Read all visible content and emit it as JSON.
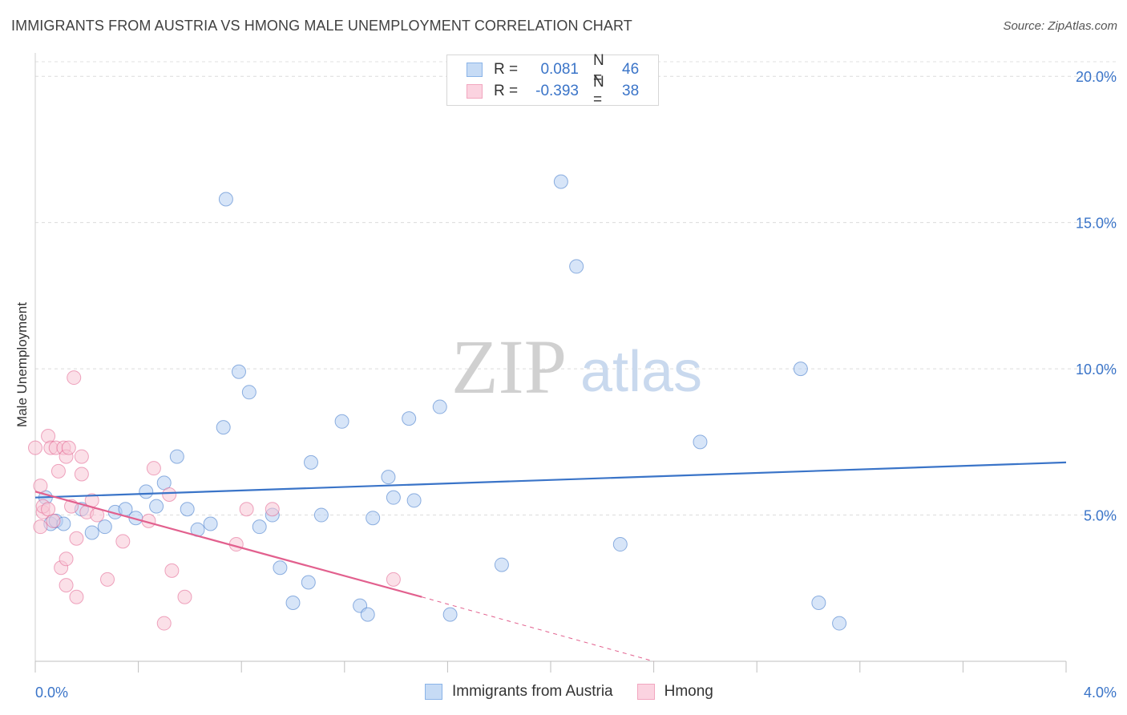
{
  "header": {
    "title": "IMMIGRANTS FROM AUSTRIA VS HMONG MALE UNEMPLOYMENT CORRELATION CHART",
    "source": "Source: ZipAtlas.com"
  },
  "watermark": {
    "zip": "ZIP",
    "atlas": "atlas"
  },
  "legend": {
    "rows": [
      {
        "r_label": "R =",
        "r_value": "0.081",
        "n_label": "N =",
        "n_value": "46",
        "color": "#8ab4e8"
      },
      {
        "r_label": "R =",
        "r_value": "-0.393",
        "n_label": "N =",
        "n_value": "38",
        "color": "#f2a6bf"
      }
    ]
  },
  "bottom_legend": {
    "items": [
      {
        "label": "Immigrants from Austria",
        "color": "#8ab4e8"
      },
      {
        "label": "Hmong",
        "color": "#f2a6bf"
      }
    ]
  },
  "chart_data": {
    "type": "scatter",
    "title": "IMMIGRANTS FROM AUSTRIA VS HMONG MALE UNEMPLOYMENT CORRELATION CHART",
    "xlabel": "",
    "ylabel": "Male Unemployment",
    "xlim": [
      0,
      4
    ],
    "ylim": [
      0,
      20.5
    ],
    "x_tick_labels": [
      "0.0%",
      "4.0%"
    ],
    "y_ticks": [
      5,
      10,
      15,
      20
    ],
    "y_tick_labels": [
      "5.0%",
      "10.0%",
      "15.0%",
      "20.0%"
    ],
    "grid": true,
    "series": [
      {
        "name": "Immigrants from Austria",
        "color": "#3a74c8",
        "fill": "#b7d0f2",
        "points": [
          [
            0.04,
            5.6
          ],
          [
            0.06,
            4.7
          ],
          [
            0.08,
            4.8
          ],
          [
            0.11,
            4.7
          ],
          [
            0.18,
            5.2
          ],
          [
            0.22,
            4.4
          ],
          [
            0.27,
            4.6
          ],
          [
            0.31,
            5.1
          ],
          [
            0.35,
            5.2
          ],
          [
            0.39,
            4.9
          ],
          [
            0.43,
            5.8
          ],
          [
            0.47,
            5.3
          ],
          [
            0.5,
            6.1
          ],
          [
            0.55,
            7.0
          ],
          [
            0.59,
            5.2
          ],
          [
            0.63,
            4.5
          ],
          [
            0.68,
            4.7
          ],
          [
            0.73,
            8.0
          ],
          [
            0.74,
            15.8
          ],
          [
            0.79,
            9.9
          ],
          [
            0.83,
            9.2
          ],
          [
            0.87,
            4.6
          ],
          [
            0.92,
            5.0
          ],
          [
            0.95,
            3.2
          ],
          [
            1.0,
            2.0
          ],
          [
            1.06,
            2.7
          ],
          [
            1.07,
            6.8
          ],
          [
            1.11,
            5.0
          ],
          [
            1.19,
            8.2
          ],
          [
            1.26,
            1.9
          ],
          [
            1.29,
            1.6
          ],
          [
            1.31,
            4.9
          ],
          [
            1.37,
            6.3
          ],
          [
            1.39,
            5.6
          ],
          [
            1.45,
            8.3
          ],
          [
            1.47,
            5.5
          ],
          [
            1.57,
            8.7
          ],
          [
            1.61,
            1.6
          ],
          [
            1.81,
            3.3
          ],
          [
            2.04,
            16.4
          ],
          [
            2.1,
            13.5
          ],
          [
            2.27,
            4.0
          ],
          [
            2.58,
            7.5
          ],
          [
            2.97,
            10.0
          ],
          [
            3.04,
            2.0
          ],
          [
            3.12,
            1.3
          ]
        ],
        "trendline": {
          "x": [
            0.0,
            4.0
          ],
          "y": [
            5.6,
            6.8
          ]
        }
      },
      {
        "name": "Hmong",
        "color": "#e2608e",
        "fill": "#f7c6d5",
        "points": [
          [
            0.0,
            7.3
          ],
          [
            0.02,
            6.0
          ],
          [
            0.02,
            4.6
          ],
          [
            0.03,
            5.1
          ],
          [
            0.03,
            5.3
          ],
          [
            0.05,
            7.7
          ],
          [
            0.06,
            7.3
          ],
          [
            0.07,
            4.8
          ],
          [
            0.08,
            7.3
          ],
          [
            0.09,
            6.5
          ],
          [
            0.1,
            3.2
          ],
          [
            0.11,
            7.3
          ],
          [
            0.12,
            7.0
          ],
          [
            0.12,
            3.5
          ],
          [
            0.12,
            2.6
          ],
          [
            0.13,
            7.3
          ],
          [
            0.14,
            5.3
          ],
          [
            0.15,
            9.7
          ],
          [
            0.16,
            2.2
          ],
          [
            0.16,
            4.2
          ],
          [
            0.18,
            7.0
          ],
          [
            0.18,
            6.4
          ],
          [
            0.2,
            5.1
          ],
          [
            0.22,
            5.5
          ],
          [
            0.24,
            5.0
          ],
          [
            0.28,
            2.8
          ],
          [
            0.34,
            4.1
          ],
          [
            0.44,
            4.8
          ],
          [
            0.46,
            6.6
          ],
          [
            0.5,
            1.3
          ],
          [
            0.52,
            5.7
          ],
          [
            0.53,
            3.1
          ],
          [
            0.58,
            2.2
          ],
          [
            0.78,
            4.0
          ],
          [
            0.82,
            5.2
          ],
          [
            0.92,
            5.2
          ],
          [
            1.39,
            2.8
          ],
          [
            0.05,
            5.2
          ]
        ],
        "trendline": {
          "x": [
            0.0,
            1.5
          ],
          "y": [
            5.8,
            2.2
          ]
        },
        "trendline_dashed_extension": {
          "x": [
            1.5,
            2.4
          ],
          "y": [
            2.2,
            0.0
          ]
        }
      }
    ]
  }
}
